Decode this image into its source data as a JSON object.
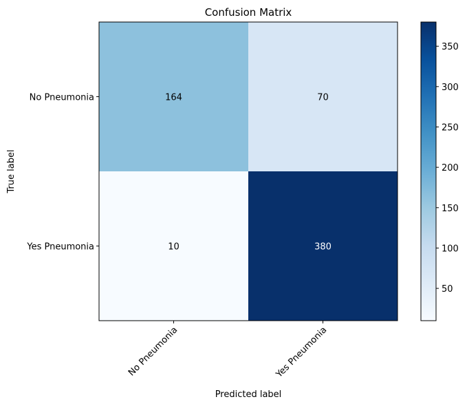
{
  "chart_data": {
    "type": "heatmap",
    "title": "Confusion Matrix",
    "xlabel": "Predicted label",
    "ylabel": "True label",
    "x_categories": [
      "No Pneumonia",
      "Yes Pneumonia"
    ],
    "y_categories": [
      "No Pneumonia",
      "Yes Pneumonia"
    ],
    "values": [
      [
        164,
        70
      ],
      [
        10,
        380
      ]
    ],
    "colormap": "Blues",
    "colorbar": {
      "range": [
        10,
        380
      ],
      "ticks": [
        50,
        100,
        150,
        200,
        250,
        300,
        350
      ]
    },
    "grid": false
  },
  "colors": {
    "blues_low": "#f7fbff",
    "blues_high": "#08306b"
  }
}
